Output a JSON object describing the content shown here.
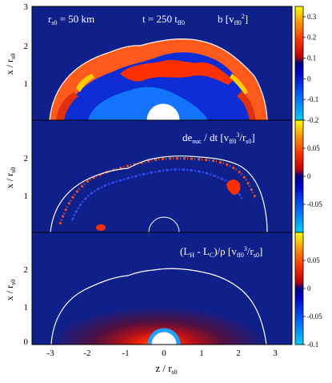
{
  "figure": {
    "header": {
      "r_label": "r",
      "r_sub": "s0",
      "r_value": " = 50 km",
      "t_label": "t = 250 t",
      "t_sub": "ff0",
      "b_label": "b  [v",
      "b_sub": "ff0",
      "b_sup": "2",
      "b_close": "]"
    },
    "panels": [
      {
        "id": "b",
        "ylabel": "x / r",
        "ylabel_sub": "s0",
        "colorbar": {
          "range": [
            -0.2,
            0.35
          ],
          "ticks": [
            {
              "value": 0.3,
              "label": "0.3"
            },
            {
              "value": 0.2,
              "label": "0.2"
            },
            {
              "value": 0.1,
              "label": "0.1"
            },
            {
              "value": 0,
              "label": "0"
            },
            {
              "value": -0.1,
              "label": "-0.1"
            },
            {
              "value": -0.2,
              "label": "-0.2"
            }
          ]
        }
      },
      {
        "id": "denuc",
        "ylabel": "x / r",
        "ylabel_sub": "s0",
        "label_parts": [
          "de",
          "nuc",
          " / dt  [v",
          "ff0",
          "3",
          "/r",
          "s0",
          "]"
        ],
        "colorbar": {
          "range": [
            -0.1,
            0.1
          ],
          "ticks": [
            {
              "value": 0.05,
              "label": "0.05"
            },
            {
              "value": 0,
              "label": "0"
            },
            {
              "value": -0.05,
              "label": "-0.05"
            }
          ]
        }
      },
      {
        "id": "cooling",
        "ylabel": "x / r",
        "ylabel_sub": "s0",
        "label_parts": [
          "(L",
          "H",
          " - L",
          "C",
          ")/ρ  [v",
          "ff0",
          "3",
          "/r",
          "s0",
          "]"
        ],
        "colorbar": {
          "range": [
            -0.1,
            0.1
          ],
          "ticks": [
            {
              "value": 0.05,
              "label": "0.05"
            },
            {
              "value": 0,
              "label": "0"
            },
            {
              "value": -0.05,
              "label": "-0.05"
            },
            {
              "value": -0.1,
              "label": "-0.1"
            }
          ]
        }
      }
    ],
    "yticks_top": [
      "3",
      "2",
      "1"
    ],
    "yticks_mid": [
      "2",
      "1"
    ],
    "yticks_bot": [
      "2",
      "1",
      "0"
    ],
    "xaxis": {
      "ticks": [
        "-3",
        "-2",
        "-1",
        "0",
        "1",
        "2",
        "3"
      ],
      "label": "z / r",
      "label_sub": "s0"
    },
    "colors": {
      "background": "#10208a",
      "shock": "#ffffff"
    }
  }
}
